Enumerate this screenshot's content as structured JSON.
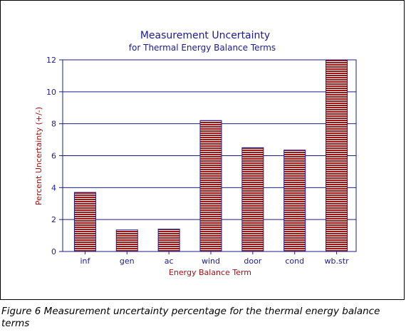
{
  "caption": "Figure 6   Measurement uncertainty percentage for the thermal energy balance terms",
  "colors": {
    "title": "#1b1b8f",
    "axis_label": "#a01010",
    "bar_stripe": "#a01414",
    "grid": "#1b1b8f",
    "tick_text": "#1b1b8f"
  },
  "chart_data": {
    "type": "bar",
    "title": "Measurement Uncertainty",
    "subtitle": "for Thermal Energy Balance Terms",
    "xlabel": "Energy Balance Term",
    "ylabel": "Percent Uncertainty (+/-)",
    "categories": [
      "inf",
      "gen",
      "ac",
      "wind",
      "door",
      "cond",
      "wb.str"
    ],
    "values": [
      3.7,
      1.35,
      1.4,
      8.2,
      6.5,
      6.35,
      12.0
    ],
    "ylim": [
      0,
      12
    ],
    "yticks": [
      "0",
      "2",
      "4",
      "6",
      "8",
      "10",
      "12"
    ],
    "grid": true,
    "pattern": "horizontal-stripes"
  }
}
